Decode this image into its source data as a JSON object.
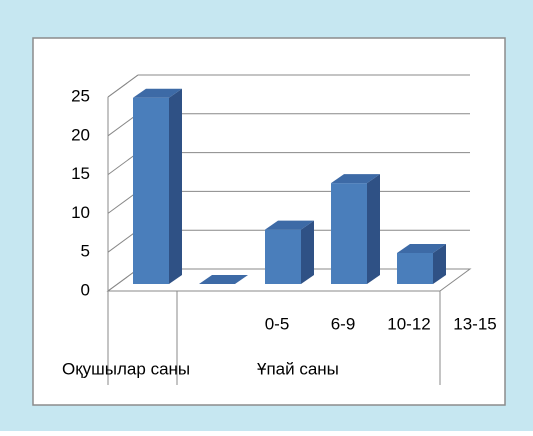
{
  "chart_data": {
    "type": "bar3d",
    "categories": [
      null,
      "0-5",
      "6-9",
      "10-12",
      "13-15"
    ],
    "values": [
      24,
      0,
      7,
      13,
      4
    ],
    "category_groups": [
      "Оқушылар саны",
      "Ұпай саны"
    ],
    "color": "#4a7ebb",
    "ylim": [
      0,
      25
    ],
    "yticks": [
      0,
      5,
      10,
      15,
      20,
      25
    ],
    "grid": true
  }
}
